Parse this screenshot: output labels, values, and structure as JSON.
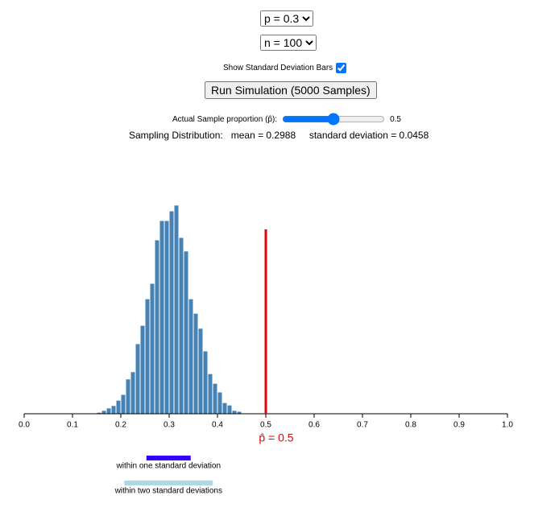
{
  "controls": {
    "p_select": "p = 0.3",
    "n_select": "n = 100",
    "show_sd_label": "Show Standard Deviation Bars",
    "show_sd": true,
    "run_button": "Run Simulation (5000 Samples)",
    "slider_label": "Actual Sample proportion (p̂):",
    "slider_value": 0.5
  },
  "stats": {
    "title": "Sampling Distribution:",
    "mean": {
      "value": 0.2988,
      "label": "mean = 0.2988"
    },
    "sd": {
      "value": 0.0458,
      "label": "standard deviation = 0.0458"
    }
  },
  "chart_data": {
    "type": "histogram",
    "bins": [
      0.15,
      0.16,
      0.17,
      0.18,
      0.19,
      0.2,
      0.21,
      0.22,
      0.23,
      0.24,
      0.25,
      0.26,
      0.27,
      0.28,
      0.29,
      0.3,
      0.31,
      0.32,
      0.33,
      0.34,
      0.35,
      0.36,
      0.37,
      0.38,
      0.39,
      0.4,
      0.41,
      0.42,
      0.43,
      0.44,
      0.45
    ],
    "values": [
      3,
      7,
      12,
      17,
      28,
      40,
      72,
      87,
      145,
      183,
      238,
      270,
      360,
      400,
      400,
      420,
      432,
      365,
      337,
      238,
      208,
      177,
      130,
      83,
      63,
      45,
      23,
      18,
      7,
      5
    ],
    "color": "#4682b4",
    "xlim": [
      0,
      1
    ],
    "xticks": [
      {
        "value": 0,
        "label": "0.0"
      },
      0.1,
      0.2,
      0.3,
      0.4,
      0.5,
      0.6,
      0.7,
      0.8,
      0.9,
      {
        "value": 1,
        "label": "1.0"
      }
    ],
    "ylim": [
      0,
      440
    ],
    "marker": {
      "value": 0.5,
      "label": "p̂ = 0.5",
      "color": "#ee0000"
    },
    "sd_bars": [
      {
        "label": "within one standard deviation",
        "color": "#3300ff",
        "k": 1
      },
      {
        "label": "within two standard deviations",
        "color": "#add8e6",
        "k": 2
      }
    ]
  }
}
